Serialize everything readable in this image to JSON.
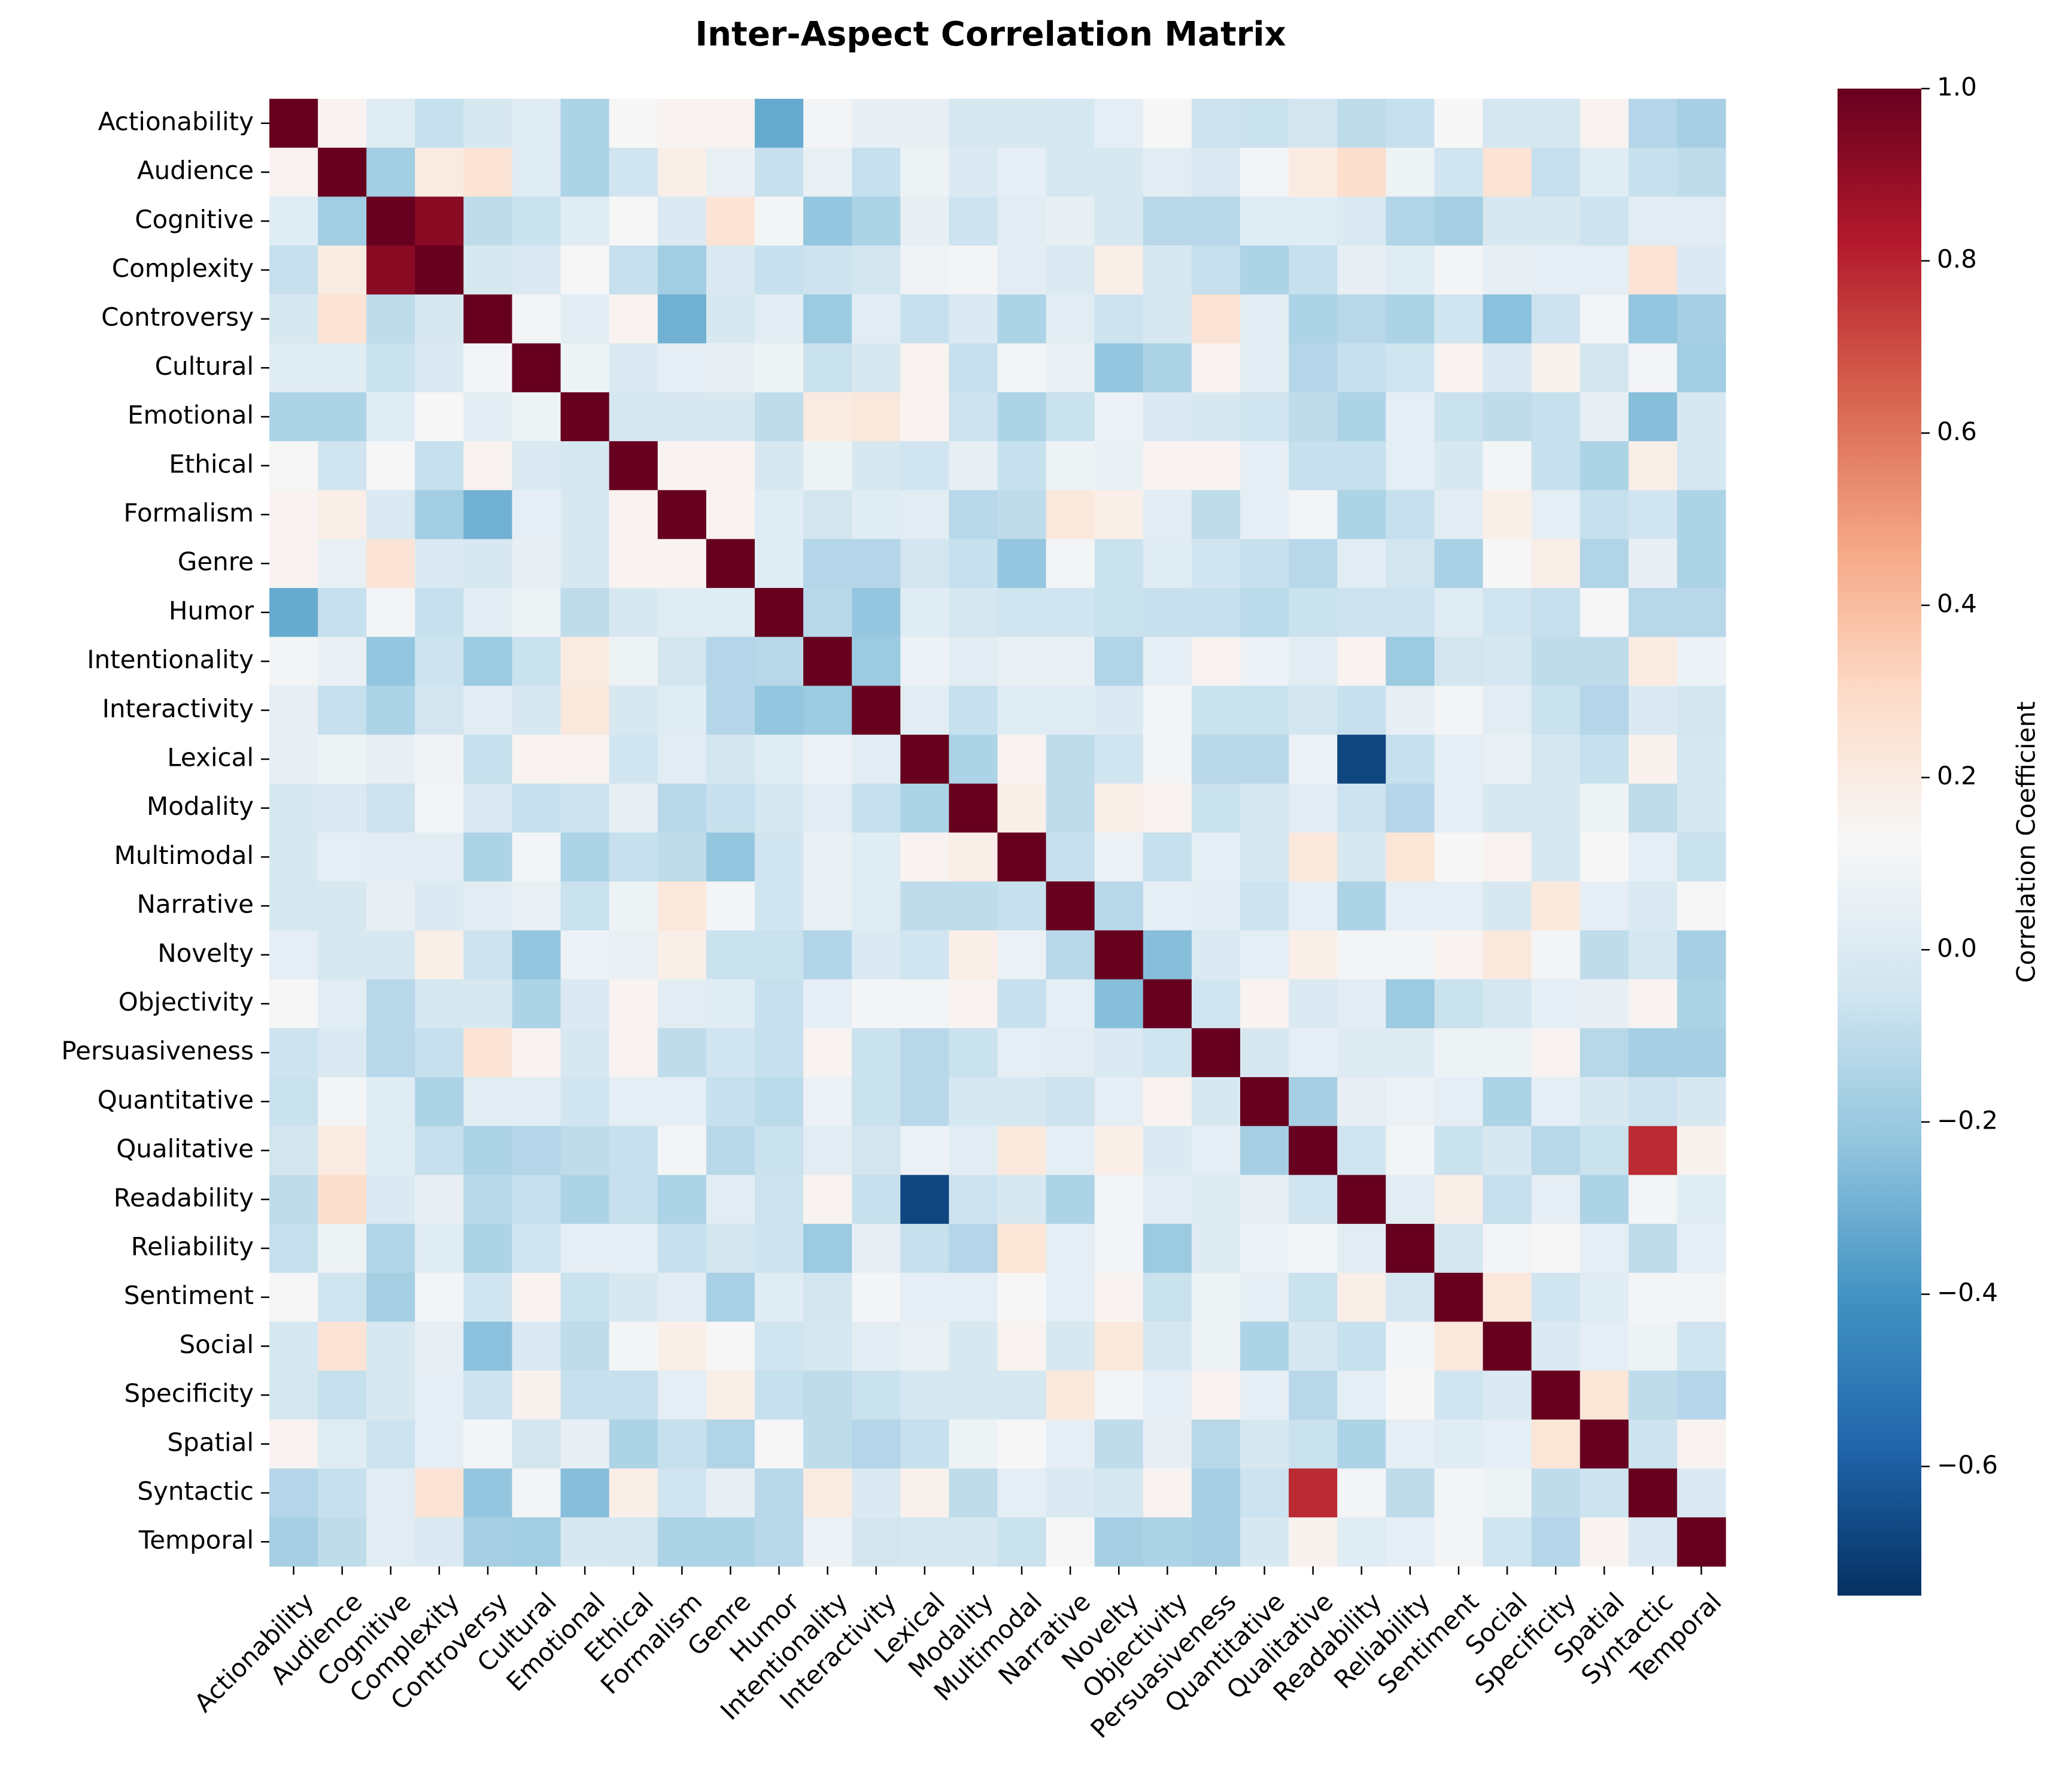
{
  "chart_data": {
    "type": "heatmap",
    "title": "Inter-Aspect Correlation Matrix",
    "colorbar_label": "Correlation Coefficient",
    "colormap": "RdBu_r",
    "vmin": -0.75,
    "vmax": 1.0,
    "colorbar_ticks": [
      "−0.6",
      "−0.4",
      "−0.2",
      "0.0",
      "0.2",
      "0.4",
      "0.6",
      "0.8",
      "1.0"
    ],
    "colorbar_tick_values": [
      -0.6,
      -0.4,
      -0.2,
      0.0,
      0.2,
      0.4,
      0.6,
      0.8,
      1.0
    ],
    "labels": [
      "Actionability",
      "Audience",
      "Cognitive",
      "Complexity",
      "Controversy",
      "Cultural",
      "Emotional",
      "Ethical",
      "Formalism",
      "Genre",
      "Humor",
      "Intentionality",
      "Interactivity",
      "Lexical",
      "Modality",
      "Multimodal",
      "Narrative",
      "Novelty",
      "Objectivity",
      "Persuasiveness",
      "Quantitative",
      "Qualitative",
      "Readability",
      "Reliability",
      "Sentiment",
      "Social",
      "Specificity",
      "Spatial",
      "Syntactic",
      "Temporal"
    ],
    "matrix": [
      [
        1,
        0.15,
        0.02,
        -0.08,
        -0.02,
        0.02,
        -0.15,
        0.12,
        0.15,
        0.15,
        -0.32,
        0.1,
        0.05,
        0.05,
        -0.02,
        -0.02,
        -0.03,
        0.04,
        0.12,
        -0.06,
        -0.07,
        -0.04,
        -0.1,
        -0.08,
        0.12,
        -0.03,
        -0.03,
        0.15,
        -0.13,
        -0.17
      ],
      [
        0.15,
        1,
        -0.18,
        0.2,
        0.25,
        0.02,
        -0.15,
        -0.05,
        0.18,
        0.06,
        -0.08,
        0.06,
        -0.08,
        0.08,
        -0.01,
        0.04,
        -0.02,
        -0.02,
        0.03,
        -0.01,
        0.1,
        0.2,
        0.28,
        0.08,
        -0.05,
        0.25,
        -0.08,
        0.02,
        -0.08,
        -0.1
      ],
      [
        0.02,
        -0.18,
        1,
        0.92,
        -0.1,
        -0.07,
        0.02,
        0.12,
        -0.01,
        0.25,
        0.1,
        -0.22,
        -0.15,
        0.05,
        -0.06,
        0.03,
        0.05,
        -0.02,
        -0.12,
        -0.12,
        0.02,
        0.02,
        -0.01,
        -0.14,
        -0.17,
        -0.02,
        -0.02,
        -0.06,
        0.03,
        0.03
      ],
      [
        -0.08,
        0.2,
        0.92,
        1,
        -0.02,
        -0.01,
        0.12,
        -0.08,
        -0.18,
        -0.01,
        -0.08,
        -0.06,
        -0.04,
        0.09,
        0.1,
        0.03,
        -0.01,
        0.18,
        -0.03,
        -0.08,
        -0.15,
        -0.08,
        0.05,
        0.02,
        0.1,
        0.05,
        0.04,
        0.04,
        0.25,
        -0.01
      ],
      [
        -0.02,
        0.25,
        -0.1,
        -0.02,
        1,
        0.1,
        0.03,
        0.15,
        -0.3,
        -0.02,
        0.03,
        -0.2,
        0.03,
        -0.08,
        -0.01,
        -0.15,
        0.03,
        -0.06,
        -0.02,
        0.25,
        0.03,
        -0.15,
        -0.12,
        -0.15,
        -0.05,
        -0.24,
        -0.06,
        0.1,
        -0.22,
        -0.17
      ],
      [
        0.02,
        0.02,
        -0.07,
        -0.01,
        0.1,
        1,
        0.08,
        -0.01,
        0.04,
        0.05,
        0.08,
        -0.07,
        -0.02,
        0.15,
        -0.08,
        0.1,
        0.06,
        -0.22,
        -0.15,
        0.15,
        0.03,
        -0.13,
        -0.08,
        -0.05,
        0.15,
        -0.01,
        0.16,
        -0.04,
        0.1,
        -0.18
      ],
      [
        -0.15,
        -0.15,
        0.02,
        0.12,
        0.03,
        0.08,
        1,
        -0.03,
        -0.02,
        -0.02,
        -0.1,
        0.2,
        0.22,
        0.15,
        -0.06,
        -0.15,
        -0.07,
        0.07,
        -0.01,
        -0.02,
        -0.05,
        -0.1,
        -0.15,
        0.04,
        -0.07,
        -0.1,
        -0.08,
        0.05,
        -0.25,
        -0.02
      ],
      [
        0.12,
        -0.05,
        0.12,
        -0.08,
        0.15,
        -0.01,
        -0.03,
        1,
        0.15,
        0.15,
        -0.02,
        0.08,
        -0.02,
        -0.05,
        0.05,
        -0.08,
        0.08,
        0.06,
        0.15,
        0.15,
        0.04,
        -0.08,
        -0.08,
        0.04,
        -0.02,
        0.1,
        -0.08,
        -0.15,
        0.18,
        -0.03
      ],
      [
        0.15,
        0.18,
        -0.01,
        -0.18,
        -0.3,
        0.04,
        -0.02,
        0.15,
        1,
        0.15,
        0.02,
        -0.04,
        0.02,
        0.03,
        -0.12,
        -0.1,
        0.22,
        0.18,
        0.03,
        -0.1,
        0.04,
        0.1,
        -0.15,
        -0.08,
        0.03,
        0.18,
        0.04,
        -0.08,
        -0.05,
        -0.15
      ],
      [
        0.15,
        0.06,
        0.25,
        -0.01,
        -0.02,
        0.05,
        -0.02,
        0.15,
        0.15,
        1,
        0.02,
        -0.13,
        -0.13,
        -0.04,
        -0.08,
        -0.22,
        0.1,
        -0.07,
        0.02,
        -0.05,
        -0.08,
        -0.12,
        0.03,
        -0.04,
        -0.16,
        0.12,
        0.18,
        -0.14,
        0.05,
        -0.15
      ],
      [
        -0.32,
        -0.08,
        0.1,
        -0.08,
        0.03,
        0.08,
        -0.1,
        -0.02,
        0.02,
        0.02,
        1,
        -0.12,
        -0.22,
        0.02,
        -0.03,
        -0.05,
        -0.05,
        -0.07,
        -0.08,
        -0.08,
        -0.11,
        -0.07,
        -0.06,
        -0.06,
        0.02,
        -0.05,
        -0.08,
        0.12,
        -0.12,
        -0.12
      ],
      [
        0.1,
        0.06,
        -0.22,
        -0.06,
        -0.2,
        -0.07,
        0.2,
        0.08,
        -0.04,
        -0.13,
        -0.12,
        1,
        -0.2,
        0.07,
        0.03,
        0.06,
        0.06,
        -0.14,
        0.04,
        0.15,
        0.07,
        0.03,
        0.15,
        -0.2,
        -0.04,
        -0.03,
        -0.1,
        -0.1,
        0.2,
        0.07
      ],
      [
        0.05,
        -0.08,
        -0.15,
        -0.04,
        0.03,
        -0.02,
        0.22,
        -0.02,
        0.02,
        -0.13,
        -0.22,
        -0.2,
        1,
        0.03,
        -0.08,
        0.02,
        0.02,
        -0.01,
        0.1,
        -0.07,
        -0.07,
        -0.04,
        -0.08,
        0.05,
        0.1,
        0.03,
        -0.07,
        -0.13,
        -0.01,
        -0.04
      ],
      [
        0.05,
        0.08,
        0.05,
        0.09,
        -0.08,
        0.15,
        0.15,
        -0.05,
        0.03,
        -0.04,
        0.02,
        0.07,
        0.03,
        1,
        -0.15,
        0.15,
        -0.1,
        -0.05,
        0.1,
        -0.12,
        -0.12,
        0.07,
        -0.68,
        -0.08,
        0.04,
        0.06,
        -0.03,
        -0.08,
        0.16,
        -0.03
      ],
      [
        -0.02,
        -0.01,
        -0.06,
        0.1,
        -0.01,
        -0.08,
        -0.06,
        0.05,
        -0.12,
        -0.08,
        -0.03,
        0.03,
        -0.08,
        -0.15,
        1,
        0.18,
        -0.1,
        0.18,
        0.15,
        -0.07,
        -0.03,
        0.03,
        -0.06,
        -0.13,
        0.04,
        -0.02,
        -0.02,
        0.08,
        -0.1,
        -0.03
      ],
      [
        -0.02,
        0.04,
        0.03,
        0.03,
        -0.15,
        0.1,
        -0.15,
        -0.08,
        -0.1,
        -0.22,
        -0.05,
        0.06,
        0.02,
        0.15,
        0.18,
        1,
        -0.08,
        0.07,
        -0.08,
        0.04,
        -0.03,
        0.22,
        -0.02,
        0.24,
        0.12,
        0.15,
        -0.03,
        0.12,
        0.04,
        -0.07
      ],
      [
        -0.03,
        -0.02,
        0.05,
        -0.01,
        0.03,
        0.06,
        -0.07,
        0.08,
        0.22,
        0.1,
        -0.05,
        0.06,
        0.02,
        -0.1,
        -0.1,
        -0.08,
        1,
        -0.12,
        0.04,
        0.03,
        -0.06,
        0.04,
        -0.15,
        0.04,
        0.04,
        -0.02,
        0.22,
        0.04,
        -0.01,
        0.12
      ],
      [
        0.04,
        -0.02,
        -0.02,
        0.18,
        -0.06,
        -0.22,
        0.07,
        0.06,
        0.18,
        -0.07,
        -0.07,
        -0.14,
        -0.01,
        -0.05,
        0.18,
        0.07,
        -0.12,
        1,
        -0.25,
        -0.01,
        0.04,
        0.18,
        0.1,
        0.1,
        0.15,
        0.22,
        0.1,
        -0.1,
        -0.03,
        -0.17
      ],
      [
        0.12,
        0.03,
        -0.12,
        -0.03,
        -0.02,
        -0.15,
        -0.01,
        0.15,
        0.03,
        0.02,
        -0.08,
        0.04,
        0.1,
        0.1,
        0.15,
        -0.08,
        0.04,
        -0.25,
        1,
        -0.05,
        0.15,
        -0.01,
        0.03,
        -0.2,
        -0.07,
        -0.03,
        0.04,
        0.05,
        0.15,
        -0.15
      ],
      [
        -0.06,
        -0.01,
        -0.12,
        -0.08,
        0.25,
        0.15,
        -0.02,
        0.15,
        -0.1,
        -0.05,
        -0.08,
        0.15,
        -0.07,
        -0.12,
        -0.07,
        0.04,
        0.03,
        -0.01,
        -0.05,
        1,
        -0.02,
        0.04,
        0.01,
        0.01,
        0.08,
        0.08,
        0.15,
        -0.12,
        -0.17,
        -0.17
      ],
      [
        -0.07,
        0.1,
        0.02,
        -0.15,
        0.03,
        0.03,
        -0.05,
        0.04,
        0.04,
        -0.08,
        -0.11,
        0.07,
        -0.07,
        -0.12,
        -0.03,
        -0.03,
        -0.06,
        0.04,
        0.15,
        -0.02,
        1,
        -0.17,
        0.05,
        0.07,
        0.04,
        -0.15,
        0.04,
        -0.02,
        -0.06,
        -0.02
      ],
      [
        -0.04,
        0.2,
        0.02,
        -0.08,
        -0.15,
        -0.13,
        -0.1,
        -0.08,
        0.1,
        -0.12,
        -0.07,
        0.03,
        -0.04,
        0.07,
        0.03,
        0.22,
        0.04,
        0.18,
        -0.01,
        0.04,
        -0.17,
        1,
        -0.05,
        0.1,
        -0.07,
        -0.02,
        -0.12,
        -0.07,
        0.78,
        0.16
      ],
      [
        -0.1,
        0.28,
        -0.01,
        0.05,
        -0.12,
        -0.08,
        -0.15,
        -0.08,
        -0.15,
        0.03,
        -0.06,
        0.15,
        -0.08,
        -0.68,
        -0.06,
        -0.02,
        -0.15,
        0.1,
        0.03,
        0.01,
        0.05,
        -0.05,
        1,
        0.03,
        0.18,
        -0.08,
        0.04,
        -0.15,
        0.1,
        0.02
      ],
      [
        -0.08,
        0.08,
        -0.14,
        0.02,
        -0.15,
        -0.05,
        0.04,
        0.04,
        -0.08,
        -0.04,
        -0.06,
        -0.2,
        0.05,
        -0.08,
        -0.13,
        0.24,
        0.04,
        0.1,
        -0.2,
        0.01,
        0.07,
        0.1,
        0.03,
        1,
        -0.03,
        0.1,
        0.12,
        0.04,
        -0.1,
        0.04
      ],
      [
        0.12,
        -0.05,
        -0.17,
        0.1,
        -0.05,
        0.15,
        -0.07,
        -0.02,
        0.03,
        -0.16,
        0.02,
        -0.04,
        0.1,
        0.04,
        0.04,
        0.12,
        0.04,
        0.15,
        -0.07,
        0.08,
        0.04,
        -0.07,
        0.18,
        -0.03,
        1,
        0.22,
        -0.05,
        0.02,
        0.1,
        0.1
      ],
      [
        -0.03,
        0.25,
        -0.02,
        0.05,
        -0.24,
        -0.01,
        -0.1,
        0.1,
        0.18,
        0.12,
        -0.05,
        -0.03,
        0.03,
        0.06,
        -0.02,
        0.15,
        -0.02,
        0.22,
        -0.03,
        0.08,
        -0.15,
        -0.02,
        -0.08,
        0.1,
        0.22,
        1,
        -0.01,
        0.04,
        0.08,
        -0.05
      ],
      [
        -0.03,
        -0.08,
        -0.02,
        0.04,
        -0.06,
        0.16,
        -0.08,
        -0.08,
        0.04,
        0.18,
        -0.08,
        -0.1,
        -0.07,
        -0.03,
        -0.02,
        -0.03,
        0.22,
        0.1,
        0.04,
        0.15,
        0.04,
        -0.12,
        0.04,
        0.12,
        -0.05,
        -0.01,
        1,
        0.24,
        -0.1,
        -0.13
      ],
      [
        0.15,
        0.02,
        -0.06,
        0.04,
        0.1,
        -0.04,
        0.05,
        -0.15,
        -0.08,
        -0.14,
        0.12,
        -0.1,
        -0.13,
        -0.08,
        0.08,
        0.12,
        0.04,
        -0.1,
        0.05,
        -0.12,
        -0.02,
        -0.07,
        -0.15,
        0.04,
        0.02,
        0.04,
        0.24,
        1,
        -0.06,
        0.15
      ],
      [
        -0.13,
        -0.08,
        0.03,
        0.25,
        -0.22,
        0.1,
        -0.25,
        0.18,
        -0.05,
        0.05,
        -0.12,
        0.2,
        -0.01,
        0.16,
        -0.1,
        0.04,
        -0.01,
        -0.03,
        0.15,
        -0.17,
        -0.06,
        0.78,
        0.1,
        -0.1,
        0.1,
        0.08,
        -0.1,
        -0.06,
        1,
        -0.01
      ],
      [
        -0.17,
        -0.1,
        0.03,
        -0.01,
        -0.17,
        -0.18,
        -0.02,
        -0.03,
        -0.15,
        -0.15,
        -0.12,
        0.07,
        -0.04,
        -0.03,
        -0.03,
        -0.07,
        0.12,
        -0.17,
        -0.15,
        -0.17,
        -0.02,
        0.16,
        0.02,
        0.04,
        0.1,
        -0.05,
        -0.13,
        0.15,
        -0.01,
        1
      ]
    ]
  }
}
